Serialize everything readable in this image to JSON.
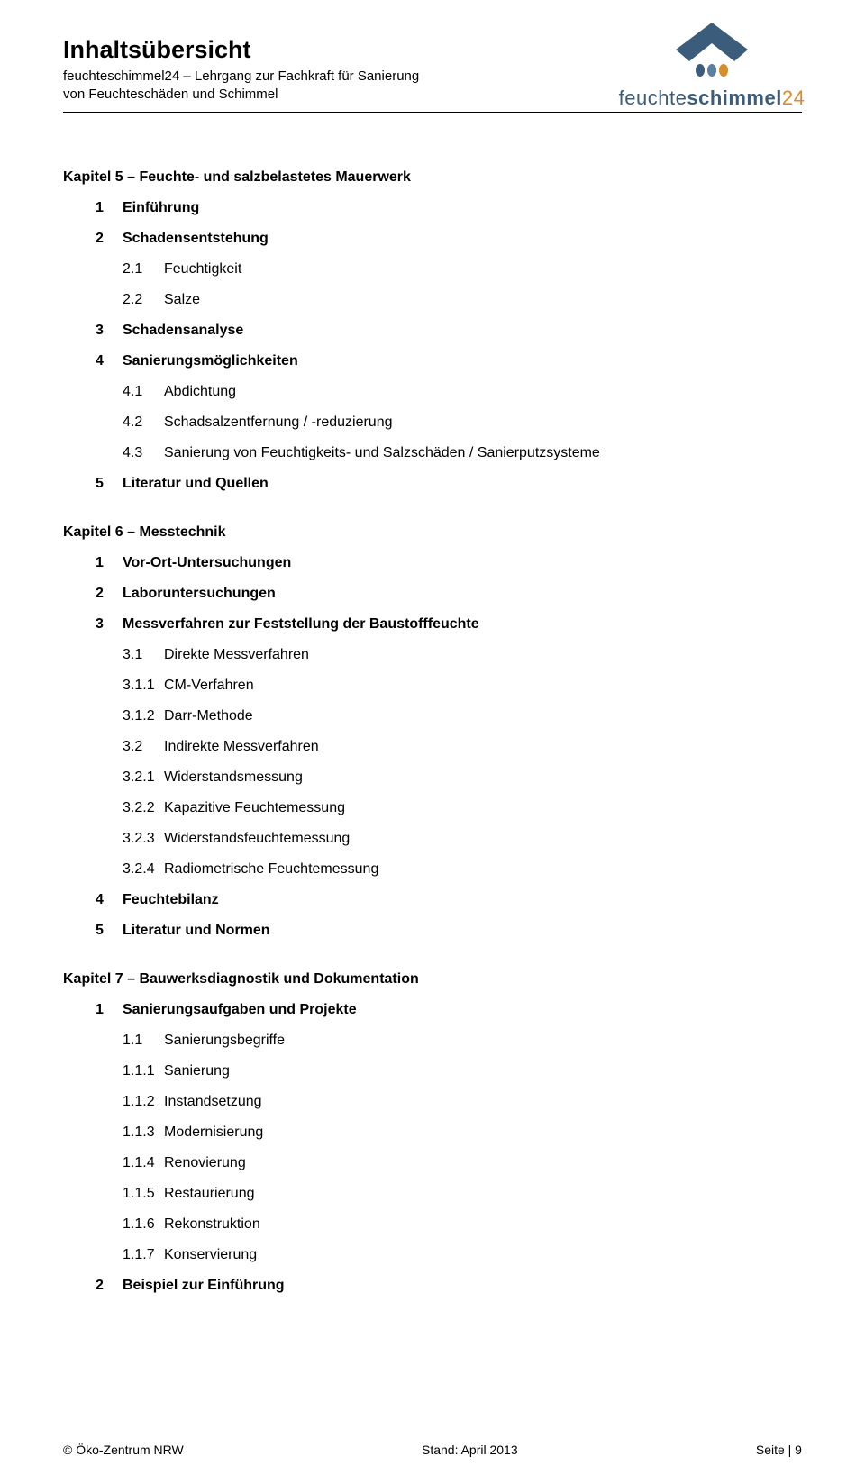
{
  "header": {
    "title": "Inhaltsübersicht",
    "sub1": "feuchteschimmel24 – Lehrgang zur Fachkraft für Sanierung",
    "sub2": "von Feuchteschäden und Schimmel"
  },
  "logo": {
    "text_a": "feuchte",
    "text_b": "schimmel",
    "text_c": "24",
    "roof_color": "#3b5c7a",
    "drop_colors": [
      "#3b5c7a",
      "#5a7fa3",
      "#d98c2a"
    ]
  },
  "chapters": [
    {
      "title": "Kapitel 5 – Feuchte- und salzbelastetes Mauerwerk",
      "items": [
        {
          "lvl": 1,
          "num": "1",
          "txt": "Einführung"
        },
        {
          "lvl": 1,
          "num": "2",
          "txt": "Schadensentstehung"
        },
        {
          "lvl": 2,
          "num": "2.1",
          "txt": "Feuchtigkeit"
        },
        {
          "lvl": 2,
          "num": "2.2",
          "txt": "Salze"
        },
        {
          "lvl": 1,
          "num": "3",
          "txt": "Schadensanalyse"
        },
        {
          "lvl": 1,
          "num": "4",
          "txt": "Sanierungsmöglichkeiten"
        },
        {
          "lvl": 2,
          "num": "4.1",
          "txt": "Abdichtung"
        },
        {
          "lvl": 2,
          "num": "4.2",
          "txt": "Schadsalzentfernung / -reduzierung"
        },
        {
          "lvl": 2,
          "num": "4.3",
          "txt": "Sanierung von Feuchtigkeits- und Salzschäden / Sanierputzsysteme"
        },
        {
          "lvl": 1,
          "num": "5",
          "txt": "Literatur und Quellen"
        }
      ]
    },
    {
      "title": "Kapitel 6 – Messtechnik",
      "items": [
        {
          "lvl": 1,
          "num": "1",
          "txt": "Vor-Ort-Untersuchungen"
        },
        {
          "lvl": 1,
          "num": "2",
          "txt": "Laboruntersuchungen"
        },
        {
          "lvl": 1,
          "num": "3",
          "txt": "Messverfahren zur Feststellung der Baustofffeuchte"
        },
        {
          "lvl": 2,
          "num": "3.1",
          "txt": "Direkte Messverfahren"
        },
        {
          "lvl": 3,
          "num": "3.1.1",
          "txt": "CM-Verfahren"
        },
        {
          "lvl": 3,
          "num": "3.1.2",
          "txt": "Darr-Methode"
        },
        {
          "lvl": 2,
          "num": "3.2",
          "txt": "Indirekte Messverfahren"
        },
        {
          "lvl": 3,
          "num": "3.2.1",
          "txt": "Widerstandsmessung"
        },
        {
          "lvl": 3,
          "num": "3.2.2",
          "txt": "Kapazitive Feuchtemessung"
        },
        {
          "lvl": 3,
          "num": "3.2.3",
          "txt": "Widerstandsfeuchtemessung"
        },
        {
          "lvl": 3,
          "num": "3.2.4",
          "txt": "Radiometrische Feuchtemessung"
        },
        {
          "lvl": 1,
          "num": "4",
          "txt": "Feuchtebilanz"
        },
        {
          "lvl": 1,
          "num": "5",
          "txt": "Literatur und Normen"
        }
      ]
    },
    {
      "title": "Kapitel 7 – Bauwerksdiagnostik und Dokumentation",
      "items": [
        {
          "lvl": 1,
          "num": "1",
          "txt": "Sanierungsaufgaben und Projekte"
        },
        {
          "lvl": 2,
          "num": "1.1",
          "txt": "Sanierungsbegriffe"
        },
        {
          "lvl": 3,
          "num": "1.1.1",
          "txt": "Sanierung"
        },
        {
          "lvl": 3,
          "num": "1.1.2",
          "txt": "Instandsetzung"
        },
        {
          "lvl": 3,
          "num": "1.1.3",
          "txt": "Modernisierung"
        },
        {
          "lvl": 3,
          "num": "1.1.4",
          "txt": "Renovierung"
        },
        {
          "lvl": 3,
          "num": "1.1.5",
          "txt": "Restaurierung"
        },
        {
          "lvl": 3,
          "num": "1.1.6",
          "txt": "Rekonstruktion"
        },
        {
          "lvl": 3,
          "num": "1.1.7",
          "txt": "Konservierung"
        },
        {
          "lvl": 1,
          "num": "2",
          "txt": "Beispiel zur Einführung"
        }
      ]
    }
  ],
  "footer": {
    "left": "© Öko-Zentrum NRW",
    "center": "Stand: April 2013",
    "right": "Seite | 9"
  }
}
